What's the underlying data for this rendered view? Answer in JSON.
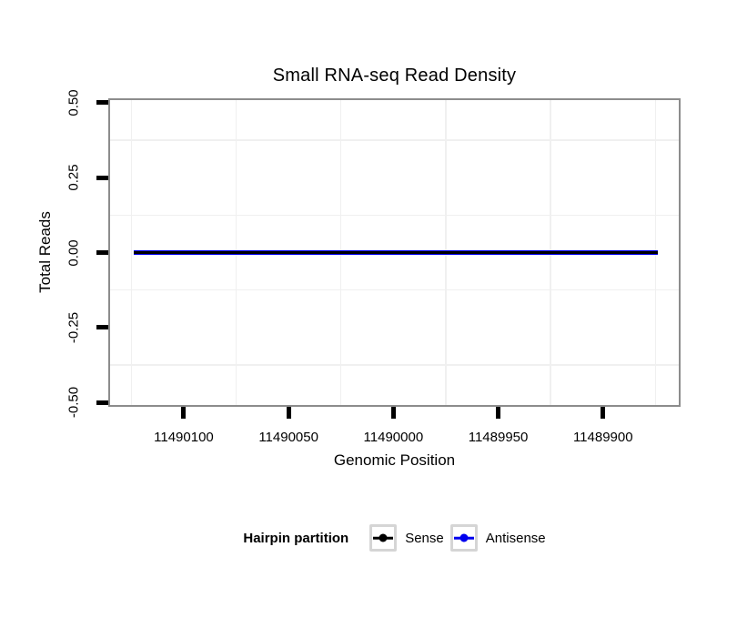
{
  "chart_data": {
    "type": "line",
    "title": "Small RNA-seq Read Density",
    "xlabel": "Genomic Position",
    "ylabel": "Total Reads",
    "x_reversed": true,
    "xlim": [
      11490136,
      11489863
    ],
    "ylim": [
      -0.515,
      0.515
    ],
    "x_ticks": [
      11490100,
      11490050,
      11490000,
      11489950,
      11489900
    ],
    "x_tick_labels": [
      "11490100",
      "11490050",
      "11490000",
      "11489950",
      "11489900"
    ],
    "y_ticks": [
      0.5,
      0.25,
      0.0,
      -0.25,
      -0.5
    ],
    "y_tick_labels": [
      "0.50",
      "0.25",
      "0.00",
      "-0.25",
      "-0.50"
    ],
    "x_minor_gridlines": [
      11490125,
      11490075,
      11490025,
      11489975,
      11489925,
      11489875
    ],
    "y_minor_gridlines": [
      0.375,
      0.125,
      -0.125,
      -0.375
    ],
    "grid": "minor-only",
    "legend_position": "bottom",
    "series": [
      {
        "name": "Sense",
        "color": "#000000",
        "x": [
          11490124,
          11489874
        ],
        "y": [
          0,
          0
        ],
        "stroke_px": 3
      },
      {
        "name": "Antisense",
        "color": "#0000EE",
        "x": [
          11490124,
          11489874
        ],
        "y": [
          0,
          0
        ],
        "stroke_px": 4.5
      }
    ]
  },
  "legend": {
    "title": "Hairpin partition",
    "items": [
      {
        "label": "Sense",
        "color": "#000000"
      },
      {
        "label": "Antisense",
        "color": "#0000EE"
      }
    ]
  },
  "colors": {
    "panel_border": "#8c8c8c",
    "minor_grid": "#f0f0f0",
    "tick": "#000000",
    "background": "#ffffff"
  }
}
